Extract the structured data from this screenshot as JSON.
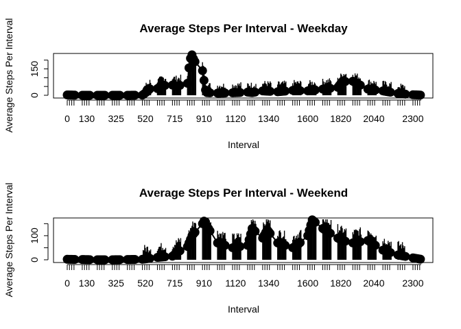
{
  "chart_data": [
    {
      "type": "line",
      "title": "Average Steps Per Interval - Weekday",
      "xlabel": "Interval",
      "ylabel": "Average Steps Per Interval",
      "xlim": [
        0,
        2355
      ],
      "ylim": [
        0,
        230
      ],
      "yticks": [
        0,
        50,
        100,
        150,
        200
      ],
      "ytick_labels": [
        "0",
        "",
        "",
        "150",
        ""
      ],
      "xtick_labels": [
        "0",
        "130",
        "325",
        "520",
        "715",
        "910",
        "1120",
        "1340",
        "1600",
        "1820",
        "2040",
        "2300"
      ],
      "xtick_values": [
        0,
        130,
        325,
        520,
        715,
        910,
        1120,
        1340,
        1600,
        1820,
        2040,
        2300
      ],
      "series": [
        {
          "x": [
            0,
            50,
            100,
            200,
            300,
            400,
            500,
            530,
            560,
            600,
            630,
            700,
            730,
            800,
            815,
            830,
            845,
            900,
            920,
            930,
            1000,
            1100,
            1200,
            1230,
            1300,
            1400,
            1500,
            1600,
            1700,
            1800,
            1830,
            1900,
            2000,
            2100,
            2200,
            2300,
            2355
          ],
          "y": [
            2,
            1,
            0,
            0,
            0,
            0,
            1,
            20,
            45,
            38,
            55,
            58,
            52,
            68,
            200,
            230,
            196,
            140,
            30,
            15,
            12,
            14,
            18,
            15,
            25,
            20,
            28,
            25,
            35,
            45,
            78,
            80,
            35,
            25,
            10,
            3,
            1
          ]
        }
      ]
    },
    {
      "type": "line",
      "title": "Average Steps Per Interval - Weekend",
      "xlabel": "Interval",
      "ylabel": "Average Steps Per Interval",
      "xlim": [
        0,
        2355
      ],
      "ylim": [
        0,
        168
      ],
      "yticks": [
        0,
        50,
        100,
        150
      ],
      "ytick_labels": [
        "0",
        "",
        "100",
        ""
      ],
      "xtick_labels": [
        "0",
        "130",
        "325",
        "520",
        "715",
        "910",
        "1120",
        "1340",
        "1600",
        "1820",
        "2040",
        "2300"
      ],
      "xtick_values": [
        0,
        130,
        325,
        520,
        715,
        910,
        1120,
        1340,
        1600,
        1820,
        2040,
        2300
      ],
      "series": [
        {
          "x": [
            0,
            100,
            200,
            300,
            400,
            500,
            600,
            700,
            730,
            800,
            830,
            900,
            915,
            930,
            1000,
            1100,
            1200,
            1230,
            1300,
            1330,
            1400,
            1500,
            1530,
            1600,
            1630,
            1700,
            1800,
            1830,
            1900,
            2000,
            2100,
            2200,
            2300,
            2355
          ],
          "y": [
            2,
            1,
            0,
            0,
            1,
            2,
            10,
            15,
            30,
            55,
            100,
            150,
            166,
            140,
            70,
            50,
            60,
            130,
            90,
            125,
            70,
            50,
            60,
            100,
            166,
            130,
            90,
            80,
            70,
            80,
            40,
            20,
            8,
            2
          ]
        }
      ]
    }
  ]
}
